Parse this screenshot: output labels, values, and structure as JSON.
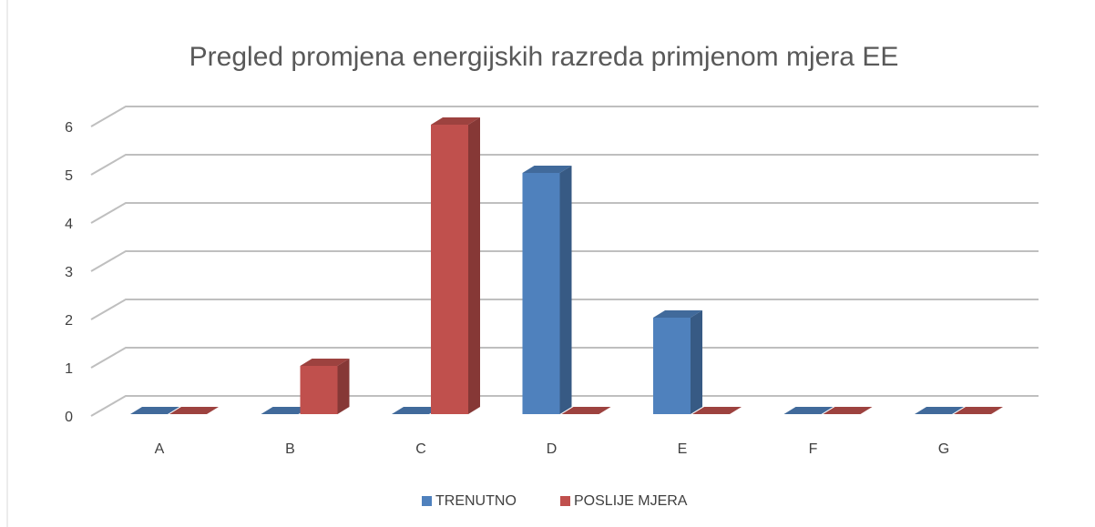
{
  "chart_data": {
    "type": "bar",
    "title": "Pregled promjena energijskih razreda primjenom mjera EE",
    "categories": [
      "A",
      "B",
      "C",
      "D",
      "E",
      "F",
      "G"
    ],
    "series": [
      {
        "name": "TRENUTNO",
        "color": "#4f81bd",
        "values": [
          0,
          0,
          0,
          5,
          2,
          0,
          0
        ]
      },
      {
        "name": "POSLIJE MJERA",
        "color": "#c0504d",
        "values": [
          0,
          1,
          6,
          0,
          0,
          0,
          0
        ]
      }
    ],
    "ylim": [
      0,
      6
    ],
    "yticks": [
      0,
      1,
      2,
      3,
      4,
      5,
      6
    ],
    "grid": true,
    "legend": "bottom"
  }
}
